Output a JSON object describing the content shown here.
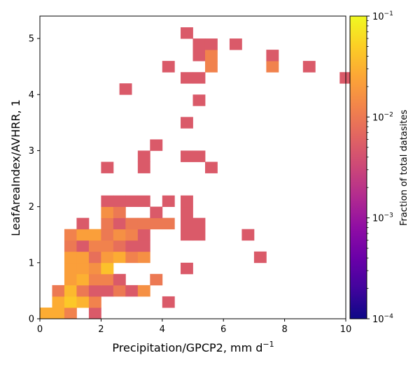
{
  "chart_data": {
    "type": "heatmap",
    "xlabel": "Precipitation/GPCP2,  mm d",
    "xlabel_sup": "−1",
    "ylabel": "LeafAreaIndex/AVHRR,  1",
    "colorbar_label": "Fraction of total datasites",
    "xlim": [
      0,
      10
    ],
    "ylim": [
      0,
      5.4
    ],
    "x_ticks": [
      0,
      2,
      4,
      6,
      8,
      10
    ],
    "y_ticks": [
      0,
      1,
      2,
      3,
      4,
      5
    ],
    "x_tick_labels": [
      "0",
      "2",
      "4",
      "6",
      "8",
      "10"
    ],
    "y_tick_labels": [
      "0",
      "1",
      "2",
      "3",
      "4",
      "5"
    ],
    "colorbar": {
      "scale": "log",
      "min": 0.0001,
      "max": 0.1,
      "colormap": "plasma",
      "ticks": [
        {
          "base": "10",
          "exp": "−1",
          "value": 0.1
        },
        {
          "base": "10",
          "exp": "−2",
          "value": 0.01
        },
        {
          "base": "10",
          "exp": "−3",
          "value": 0.001
        },
        {
          "base": "10",
          "exp": "−4",
          "value": 0.0001
        }
      ]
    },
    "bin_width": [
      0.4,
      0.2
    ],
    "cells": [
      [
        0.0,
        0.0,
        0.028
      ],
      [
        0.4,
        0.0,
        0.028
      ],
      [
        0.8,
        0.0,
        0.012
      ],
      [
        1.6,
        0.0,
        0.005
      ],
      [
        0.4,
        0.2,
        0.028
      ],
      [
        0.8,
        0.2,
        0.045
      ],
      [
        1.2,
        0.2,
        0.032
      ],
      [
        1.6,
        0.2,
        0.012
      ],
      [
        4.0,
        0.2,
        0.005
      ],
      [
        0.4,
        0.4,
        0.01
      ],
      [
        0.8,
        0.4,
        0.035
      ],
      [
        1.2,
        0.4,
        0.01
      ],
      [
        1.6,
        0.4,
        0.005
      ],
      [
        2.0,
        0.4,
        0.005
      ],
      [
        2.4,
        0.4,
        0.01
      ],
      [
        2.8,
        0.4,
        0.005
      ],
      [
        3.2,
        0.4,
        0.016
      ],
      [
        0.8,
        0.6,
        0.022
      ],
      [
        1.2,
        0.6,
        0.03
      ],
      [
        1.6,
        0.6,
        0.012
      ],
      [
        2.0,
        0.6,
        0.012
      ],
      [
        2.4,
        0.6,
        0.005
      ],
      [
        3.6,
        0.6,
        0.01
      ],
      [
        0.8,
        0.8,
        0.022
      ],
      [
        1.2,
        0.8,
        0.022
      ],
      [
        1.6,
        0.8,
        0.016
      ],
      [
        2.0,
        0.8,
        0.04
      ],
      [
        4.6,
        0.8,
        0.005
      ],
      [
        0.8,
        1.0,
        0.022
      ],
      [
        1.2,
        1.0,
        0.022
      ],
      [
        1.6,
        1.0,
        0.008
      ],
      [
        2.0,
        1.0,
        0.02
      ],
      [
        2.4,
        1.0,
        0.028
      ],
      [
        2.8,
        1.0,
        0.012
      ],
      [
        3.2,
        1.0,
        0.016
      ],
      [
        7.0,
        1.0,
        0.005
      ],
      [
        0.8,
        1.2,
        0.01
      ],
      [
        1.2,
        1.2,
        0.005
      ],
      [
        1.6,
        1.2,
        0.012
      ],
      [
        2.0,
        1.2,
        0.012
      ],
      [
        2.4,
        1.2,
        0.008
      ],
      [
        2.8,
        1.2,
        0.005
      ],
      [
        3.2,
        1.2,
        0.005
      ],
      [
        0.8,
        1.4,
        0.012
      ],
      [
        1.2,
        1.4,
        0.022
      ],
      [
        1.6,
        1.4,
        0.022
      ],
      [
        2.0,
        1.4,
        0.01
      ],
      [
        2.4,
        1.4,
        0.016
      ],
      [
        2.8,
        1.4,
        0.012
      ],
      [
        3.2,
        1.4,
        0.005
      ],
      [
        4.6,
        1.4,
        0.005
      ],
      [
        5.0,
        1.4,
        0.005
      ],
      [
        6.6,
        1.4,
        0.005
      ],
      [
        1.2,
        1.6,
        0.005
      ],
      [
        2.0,
        1.6,
        0.01
      ],
      [
        2.4,
        1.6,
        0.005
      ],
      [
        2.8,
        1.6,
        0.01
      ],
      [
        3.2,
        1.6,
        0.01
      ],
      [
        3.6,
        1.6,
        0.01
      ],
      [
        4.0,
        1.6,
        0.01
      ],
      [
        4.6,
        1.6,
        0.005
      ],
      [
        5.0,
        1.6,
        0.005
      ],
      [
        2.0,
        1.8,
        0.016
      ],
      [
        2.4,
        1.8,
        0.01
      ],
      [
        3.6,
        1.8,
        0.005
      ],
      [
        4.6,
        1.8,
        0.005
      ],
      [
        2.0,
        2.0,
        0.005
      ],
      [
        2.4,
        2.0,
        0.005
      ],
      [
        2.8,
        2.0,
        0.005
      ],
      [
        3.2,
        2.0,
        0.005
      ],
      [
        4.0,
        2.0,
        0.005
      ],
      [
        4.6,
        2.0,
        0.005
      ],
      [
        2.0,
        2.6,
        0.005
      ],
      [
        3.2,
        2.6,
        0.005
      ],
      [
        5.4,
        2.6,
        0.005
      ],
      [
        3.2,
        2.8,
        0.005
      ],
      [
        4.6,
        2.8,
        0.005
      ],
      [
        5.0,
        2.8,
        0.005
      ],
      [
        3.6,
        3.0,
        0.005
      ],
      [
        4.6,
        3.4,
        0.005
      ],
      [
        5.0,
        3.8,
        0.005
      ],
      [
        2.6,
        4.0,
        0.005
      ],
      [
        4.6,
        4.2,
        0.005
      ],
      [
        5.0,
        4.2,
        0.005
      ],
      [
        9.8,
        4.2,
        0.005
      ],
      [
        4.0,
        4.4,
        0.005
      ],
      [
        5.4,
        4.4,
        0.012
      ],
      [
        7.4,
        4.4,
        0.012
      ],
      [
        8.6,
        4.4,
        0.005
      ],
      [
        5.0,
        4.6,
        0.005
      ],
      [
        5.4,
        4.6,
        0.012
      ],
      [
        7.4,
        4.6,
        0.005
      ],
      [
        5.0,
        4.8,
        0.005
      ],
      [
        5.4,
        4.8,
        0.005
      ],
      [
        6.2,
        4.8,
        0.005
      ],
      [
        4.6,
        5.0,
        0.005
      ]
    ]
  }
}
